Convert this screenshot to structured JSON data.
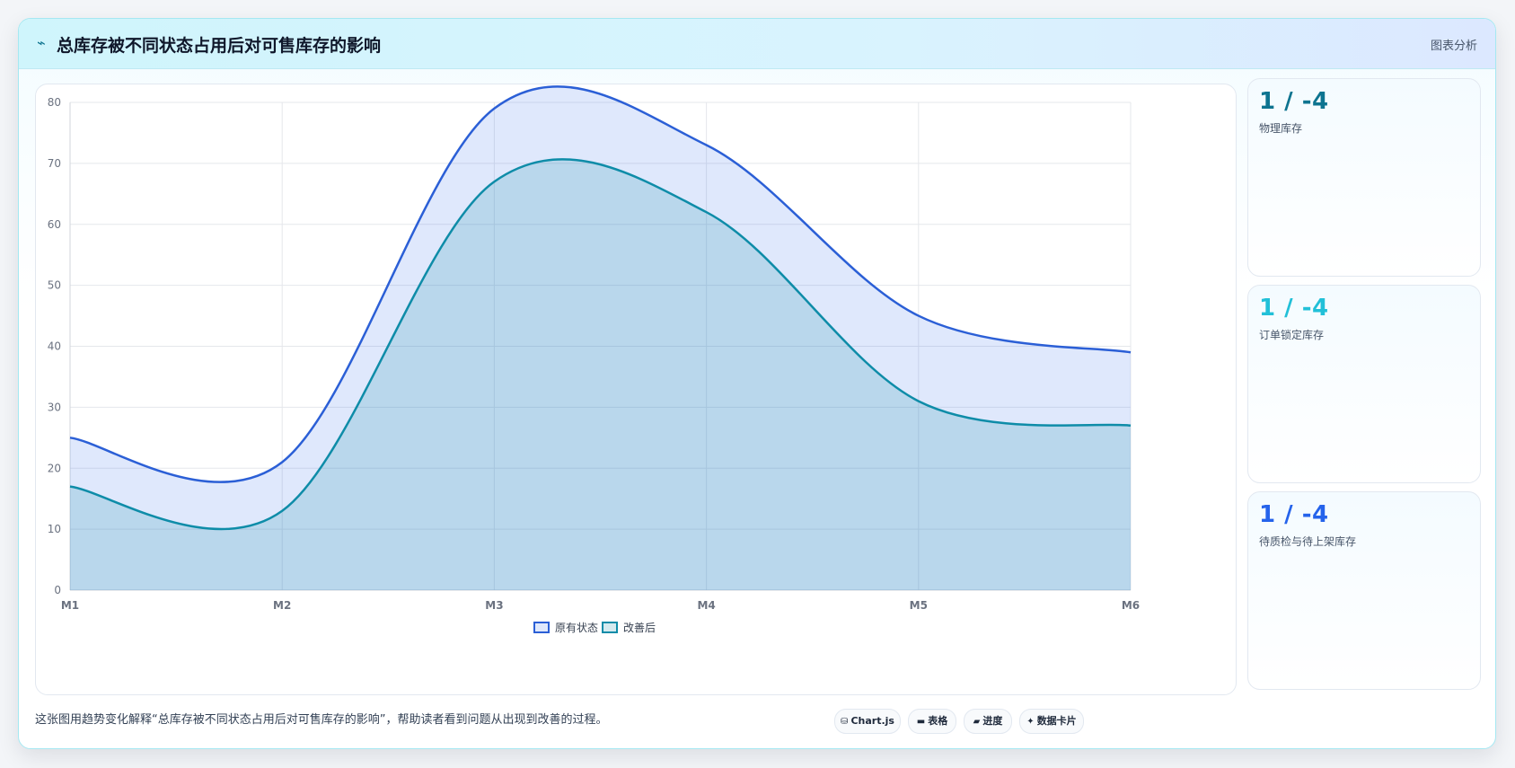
{
  "header": {
    "icon": "pulse-icon",
    "title": "总库存被不同状态占用后对可售库存的影响",
    "link": "图表分析"
  },
  "stats": [
    {
      "value": "1 / -4",
      "label": "物理库存",
      "color": "#0e7490"
    },
    {
      "value": "1 / -4",
      "label": "订单锁定库存",
      "color": "#22c0d8"
    },
    {
      "value": "1 / -4",
      "label": "待质检与待上架库存",
      "color": "#2563eb"
    }
  ],
  "caption": "这张图用趋势变化解释“总库存被不同状态占用后对可售库存的影响”，帮助读者看到问题从出现到改善的过程。",
  "tags": [
    {
      "icon": "database-icon",
      "glyph": "⛁",
      "label": "Chart.js"
    },
    {
      "icon": "table-icon",
      "glyph": "▬",
      "label": "表格"
    },
    {
      "icon": "progress-icon",
      "glyph": "▰",
      "label": "进度"
    },
    {
      "icon": "sparkle-icon",
      "glyph": "✦",
      "label": "数据卡片"
    }
  ],
  "chart_data": {
    "type": "area",
    "categories": [
      "M1",
      "M2",
      "M3",
      "M4",
      "M5",
      "M6"
    ],
    "series": [
      {
        "name": "原有状态",
        "values": [
          25,
          21,
          79,
          73,
          45,
          39
        ],
        "color": "#2b5fd6"
      },
      {
        "name": "改善后",
        "values": [
          17,
          13,
          67,
          62,
          31,
          27
        ],
        "color": "#0e8ca8"
      }
    ],
    "ylim": [
      0,
      80
    ],
    "yticks": [
      "0",
      "10",
      "20",
      "30",
      "40",
      "50",
      "60",
      "70",
      "80"
    ],
    "grid": true,
    "legend": "bottom"
  }
}
